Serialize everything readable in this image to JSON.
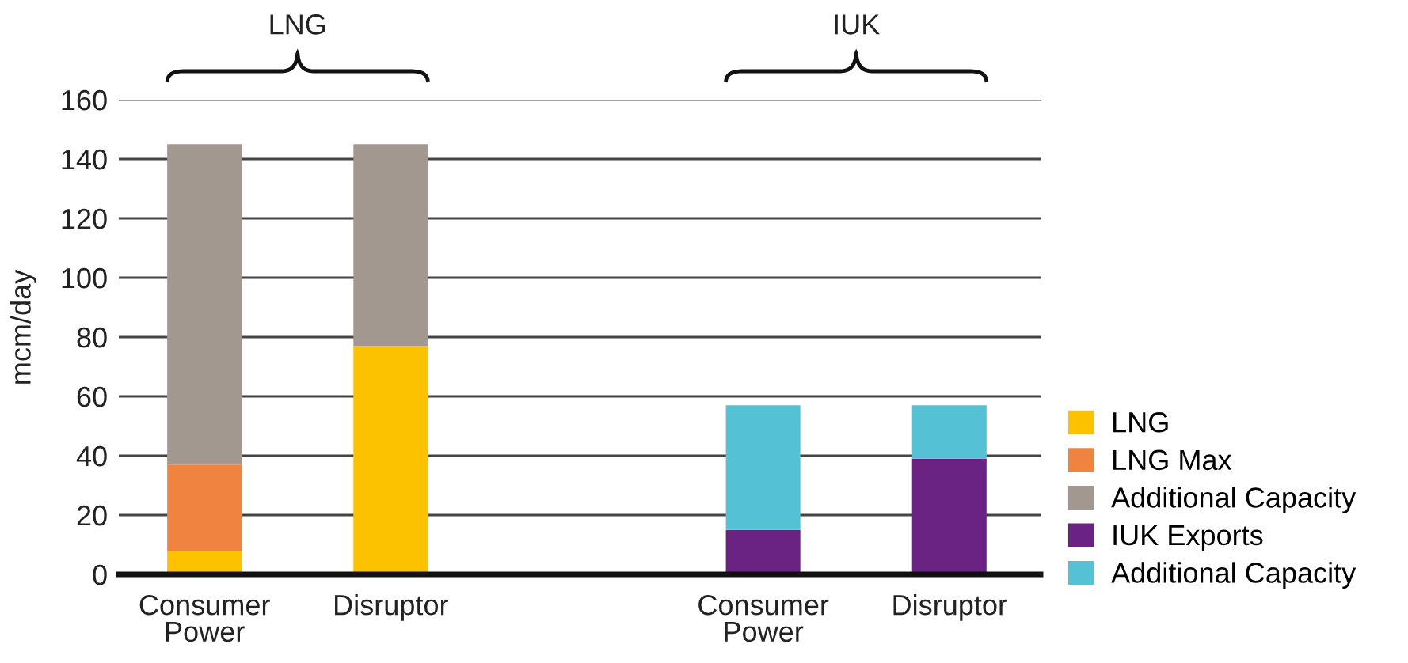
{
  "chart_data": {
    "type": "bar",
    "stacked": true,
    "categories": [
      "Consumer\nPower",
      "Disruptor",
      null,
      "Consumer\nPower",
      "Disruptor"
    ],
    "series": [
      {
        "name": "LNG",
        "color": "#fcc200",
        "values": [
          8,
          77,
          null,
          null,
          null
        ]
      },
      {
        "name": "LNG Max",
        "color": "#f18340",
        "values": [
          29,
          null,
          null,
          null,
          null
        ]
      },
      {
        "name": "Additional Capacity",
        "color": "#a39890",
        "values": [
          108,
          68,
          null,
          null,
          null
        ]
      },
      {
        "name": "IUK Exports",
        "color": "#6a2382",
        "values": [
          null,
          null,
          null,
          15,
          39
        ]
      },
      {
        "name": "Additional Capacity",
        "color": "#54c1d4",
        "values": [
          null,
          null,
          null,
          42,
          18
        ]
      }
    ],
    "ylabel": "mcm/day",
    "ylim": [
      0,
      160
    ],
    "yticks": [
      0,
      20,
      40,
      60,
      80,
      100,
      120,
      140,
      160
    ],
    "grid": "y",
    "legend": "bottom right",
    "annotations": [
      "LNG",
      "IUK"
    ]
  }
}
